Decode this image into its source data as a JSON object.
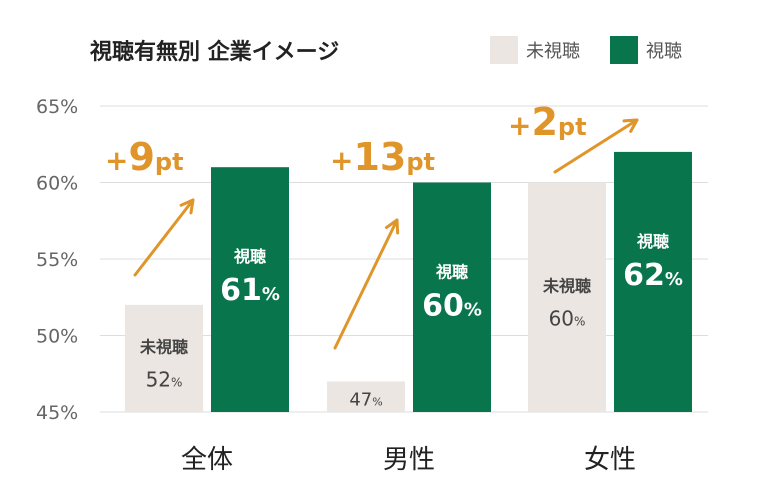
{
  "title": "視聴有無別 企業イメージ",
  "colors": {
    "not_viewed": "#ebe6e2",
    "viewed": "#08754c",
    "accent": "#e0952a",
    "grid": "#dddddd",
    "axis_text": "#666666",
    "label_dark": "#444444",
    "label_light": "#ffffff"
  },
  "chart_data": {
    "type": "bar",
    "title": "視聴有無別 企業イメージ",
    "categories": [
      "全体",
      "男性",
      "女性"
    ],
    "y_ticks": [
      "65%",
      "60%",
      "55%",
      "50%",
      "45%"
    ],
    "ylim": [
      45,
      65
    ],
    "grid": true,
    "legend_position": "top-right",
    "series": [
      {
        "name": "未視聴",
        "values": [
          52,
          47,
          60
        ],
        "labels": [
          "52%",
          "47%",
          "60%"
        ],
        "inner_label": "未視聴"
      },
      {
        "name": "視聴",
        "values": [
          61,
          60,
          62
        ],
        "labels": [
          "61%",
          "60%",
          "62%"
        ],
        "inner_label": "視聴"
      }
    ],
    "annotations": [
      "+9pt",
      "+13pt",
      "+2pt"
    ]
  }
}
